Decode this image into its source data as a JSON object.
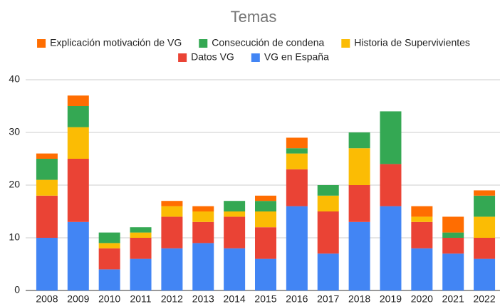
{
  "chart_data": {
    "type": "stacked_bar",
    "title": "Temas",
    "categories": [
      "2008",
      "2009",
      "2010",
      "2011",
      "2012",
      "2013",
      "2014",
      "2015",
      "2016",
      "2017",
      "2018",
      "2019",
      "2020",
      "2021",
      "2022"
    ],
    "series": [
      {
        "name": "Explicación motivación de VG",
        "color": "#ff6d01",
        "values": [
          1,
          2,
          0,
          0,
          1,
          1,
          0,
          1,
          2,
          0,
          0,
          0,
          2,
          3,
          1
        ]
      },
      {
        "name": "Consecución de condena",
        "color": "#34a853",
        "values": [
          4,
          4,
          2,
          1,
          0,
          0,
          2,
          2,
          1,
          2,
          3,
          10,
          0,
          1,
          4
        ]
      },
      {
        "name": "Historia de Supervivientes",
        "color": "#fbbc04",
        "values": [
          3,
          6,
          1,
          1,
          2,
          2,
          1,
          3,
          3,
          3,
          7,
          0,
          1,
          0,
          4
        ]
      },
      {
        "name": "Datos VG",
        "color": "#ea4335",
        "values": [
          8,
          12,
          4,
          4,
          6,
          4,
          6,
          6,
          7,
          8,
          7,
          8,
          5,
          3,
          4
        ]
      },
      {
        "name": "VG en España",
        "color": "#4285f4",
        "values": [
          10,
          13,
          4,
          6,
          8,
          9,
          8,
          6,
          16,
          7,
          13,
          16,
          8,
          7,
          6
        ]
      }
    ],
    "ylim": [
      0,
      40
    ],
    "yticks": [
      0,
      10,
      20,
      30,
      40
    ],
    "grid": true
  }
}
